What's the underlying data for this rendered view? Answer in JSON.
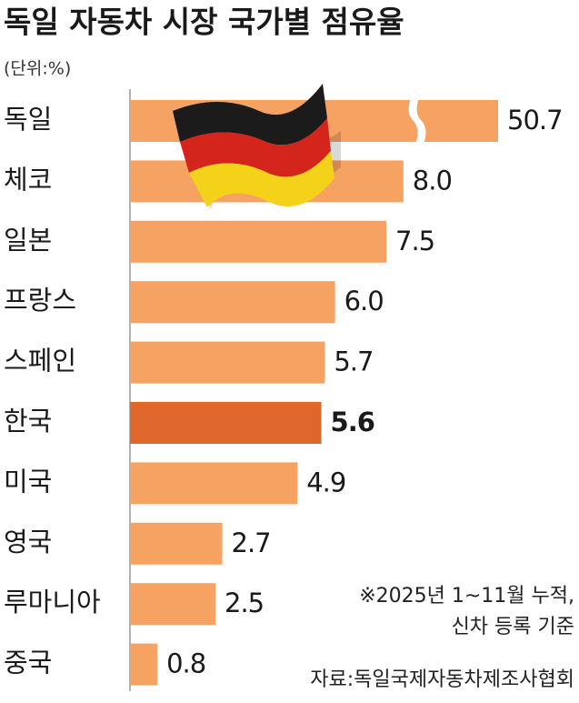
{
  "chart_data": {
    "type": "hbar",
    "title": "독일 자동차 시장 국가별 점유율",
    "unit": "(단위:%)",
    "categories": [
      "독일",
      "체코",
      "일본",
      "프랑스",
      "스페인",
      "한국",
      "미국",
      "영국",
      "루마니아",
      "중국"
    ],
    "values": [
      50.7,
      8.0,
      7.5,
      6.0,
      5.7,
      5.6,
      4.9,
      2.7,
      2.5,
      0.8
    ],
    "value_labels": [
      "50.7",
      "8.0",
      "7.5",
      "6.0",
      "5.7",
      "5.6",
      "4.9",
      "2.7",
      "2.5",
      "0.8"
    ],
    "color": "#f5a263",
    "colors": [
      "#f5a263",
      "#f5a263",
      "#f5a263",
      "#f5a263",
      "#f5a263",
      "#e0672b",
      "#f5a263",
      "#f5a263",
      "#f5a263",
      "#f5a263"
    ],
    "notes": [
      "※2025년 1~11월 누적,",
      "신차 등록 기준"
    ],
    "source": "자료:독일국제자동차제조사협회"
  }
}
